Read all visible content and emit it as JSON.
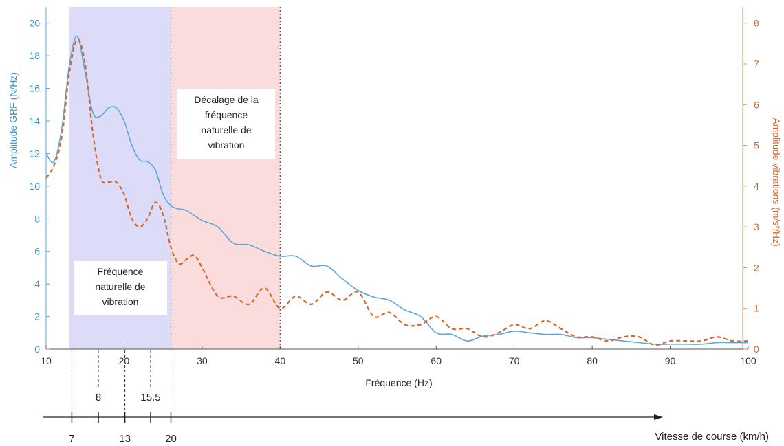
{
  "chart_data": {
    "type": "line",
    "x_label": "Fréquence (Hz)",
    "y_left_label": "Amplitude GRF (N/Hz)",
    "y_right_label": "Amplitude  vibrations  (m/s²/Hz)",
    "xlim": [
      10,
      100
    ],
    "ylim_left": [
      0,
      21
    ],
    "ylim_right": [
      0,
      8.4
    ],
    "x_ticks": [
      "10",
      "20",
      "30",
      "40",
      "50",
      "60",
      "70",
      "80",
      "90",
      "100"
    ],
    "y_left_ticks": [
      "0",
      "2",
      "4",
      "6",
      "8",
      "10",
      "12",
      "14",
      "16",
      "18",
      "20"
    ],
    "y_right_ticks": [
      "0",
      "1",
      "2",
      "3",
      "4",
      "5",
      "6",
      "7",
      "8"
    ],
    "colors": {
      "grf": "#5aa5dc",
      "vibration": "#d9652b",
      "natural_band": "#dcdcf8",
      "shift_band": "#fbdcdc"
    },
    "series": [
      {
        "axis": "left",
        "style": "solid",
        "x": [
          10,
          11,
          12,
          13,
          14,
          15,
          16,
          17,
          18,
          19,
          20,
          21,
          22,
          23,
          24,
          25,
          26,
          27,
          28,
          30,
          32,
          34,
          36,
          38,
          40,
          42,
          44,
          46,
          48,
          50,
          52,
          54,
          56,
          58,
          60,
          62,
          64,
          66,
          68,
          70,
          72,
          74,
          76,
          78,
          80,
          82,
          84,
          86,
          88,
          90,
          92,
          94,
          96,
          98,
          100
        ],
        "y": [
          12.0,
          11.5,
          13.5,
          17.5,
          19.2,
          17.0,
          14.5,
          14.3,
          14.8,
          14.8,
          14.0,
          12.5,
          11.6,
          11.5,
          11.0,
          9.5,
          8.8,
          8.6,
          8.5,
          7.9,
          7.5,
          6.5,
          6.4,
          6.0,
          5.7,
          5.7,
          5.1,
          5.1,
          4.3,
          3.6,
          3.2,
          3.0,
          2.4,
          2.0,
          1.0,
          0.9,
          0.5,
          0.8,
          0.9,
          1.1,
          1.0,
          0.9,
          0.9,
          0.7,
          0.7,
          0.6,
          0.5,
          0.4,
          0.3,
          0.3,
          0.3,
          0.3,
          0.4,
          0.4,
          0.4
        ]
      },
      {
        "axis": "right",
        "style": "dashed",
        "x": [
          10,
          11,
          12,
          13,
          14,
          15,
          16,
          17,
          18,
          19,
          20,
          21,
          22,
          23,
          24,
          25,
          26,
          27,
          28,
          29,
          30,
          32,
          34,
          36,
          38,
          40,
          42,
          44,
          46,
          48,
          50,
          52,
          54,
          56,
          58,
          60,
          62,
          64,
          66,
          68,
          70,
          72,
          74,
          76,
          78,
          80,
          82,
          84,
          86,
          88,
          90,
          92,
          94,
          96,
          98,
          100
        ],
        "y": [
          4.2,
          4.5,
          5.2,
          6.8,
          7.6,
          7.0,
          5.3,
          4.2,
          4.1,
          4.1,
          3.8,
          3.2,
          3.0,
          3.2,
          3.6,
          3.3,
          2.5,
          2.1,
          2.2,
          2.3,
          2.0,
          1.3,
          1.3,
          1.1,
          1.5,
          1.0,
          1.3,
          1.1,
          1.4,
          1.2,
          1.4,
          0.8,
          0.9,
          0.6,
          0.6,
          0.8,
          0.5,
          0.5,
          0.3,
          0.4,
          0.6,
          0.5,
          0.7,
          0.5,
          0.3,
          0.3,
          0.2,
          0.3,
          0.3,
          0.1,
          0.2,
          0.2,
          0.2,
          0.3,
          0.2,
          0.2
        ]
      }
    ],
    "bands": [
      {
        "name": "natural",
        "x_start": 13,
        "x_end": 26
      },
      {
        "name": "shift",
        "x_start": 26,
        "x_end": 40
      }
    ],
    "annotations": {
      "natural": "Fréquence\nnaturelle de\nvibration",
      "shift": "Décalage de la\nfréquence\nnaturelle de\nvibration"
    },
    "speed_axis": {
      "label": "Vitesse de course (km/h)",
      "markers": [
        {
          "freq": 13.3,
          "label": "7",
          "row": "bottom"
        },
        {
          "freq": 16.7,
          "label": "8",
          "row": "top"
        },
        {
          "freq": 20.1,
          "label": "13",
          "row": "bottom"
        },
        {
          "freq": 23.4,
          "label": "15.5",
          "row": "top"
        },
        {
          "freq": 26.0,
          "label": "20",
          "row": "bottom"
        }
      ]
    }
  }
}
